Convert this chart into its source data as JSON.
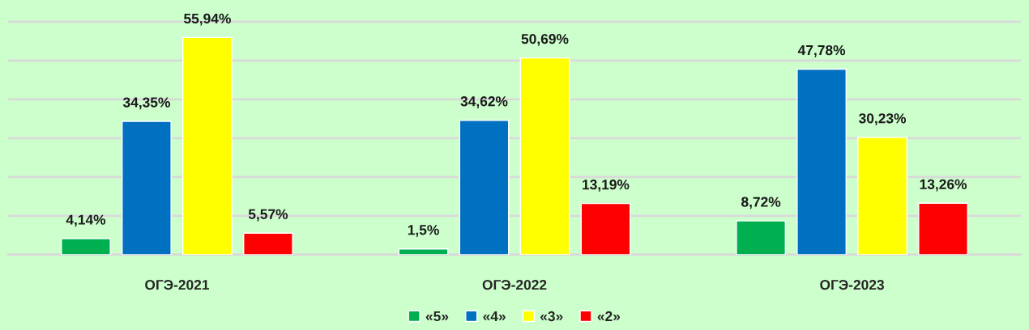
{
  "chart_data": {
    "type": "bar",
    "categories": [
      "ОГЭ-2021",
      "ОГЭ-2022",
      "ОГЭ-2023"
    ],
    "series": [
      {
        "name": "«5»",
        "color": "#00b050",
        "values": [
          4.14,
          1.5,
          8.72
        ],
        "value_labels": [
          "4,14%",
          "1,5%",
          "8,72%"
        ]
      },
      {
        "name": "«4»",
        "color": "#0070c0",
        "values": [
          34.35,
          34.62,
          47.78
        ],
        "value_labels": [
          "34,35%",
          "34,62%",
          "47,78%"
        ]
      },
      {
        "name": "«3»",
        "color": "#ffff00",
        "values": [
          55.94,
          50.69,
          30.23
        ],
        "value_labels": [
          "55,94%",
          "50,69%",
          "30,23%"
        ]
      },
      {
        "name": "«2»",
        "color": "#ff0000",
        "values": [
          5.57,
          13.19,
          13.26
        ],
        "value_labels": [
          "5,57%",
          "13,19%",
          "13,26%"
        ]
      }
    ],
    "ylim": [
      0,
      65
    ],
    "yticks": [
      {
        "value": 0,
        "label": null
      },
      {
        "value": 10,
        "label": null
      },
      {
        "value": 20,
        "label": null
      },
      {
        "value": 30,
        "label": null
      },
      {
        "value": 40,
        "label": null
      },
      {
        "value": 50,
        "label": null
      },
      {
        "value": 60,
        "label": null
      }
    ],
    "tick_labels": "x",
    "grid": "y",
    "legend": "bottom"
  }
}
